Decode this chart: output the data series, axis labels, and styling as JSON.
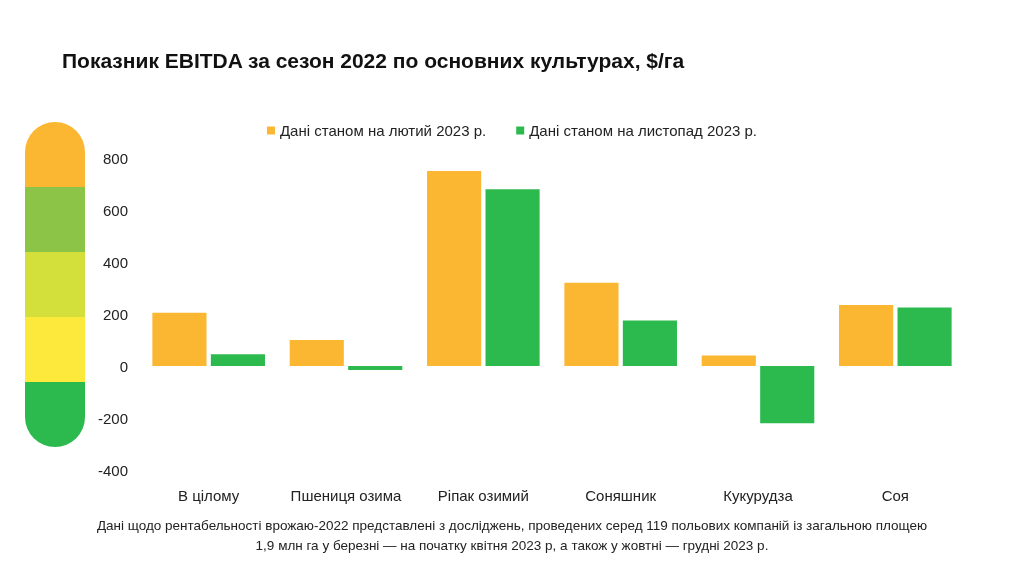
{
  "chart_data": {
    "type": "bar",
    "title": "Показник EBITDA за сезон 2022 по основних культурах, $/га",
    "categories": [
      "В цілому",
      "Пшениця озима",
      "Ріпак озимий",
      "Соняшник",
      "Кукурудза",
      "Соя"
    ],
    "series": [
      {
        "name": "Дані станом на лютий 2023 р.",
        "color": "#fbb731",
        "values": [
          205,
          100,
          750,
          320,
          40,
          235
        ]
      },
      {
        "name": "Дані станом на листопад 2023 р.",
        "color": "#2cba4f",
        "values": [
          45,
          -15,
          680,
          175,
          -220,
          225
        ]
      }
    ],
    "ylim": [
      -400,
      800
    ],
    "yticks": [
      -400,
      -200,
      0,
      200,
      400,
      600,
      800
    ],
    "grid": false,
    "legend": "top",
    "annotations": [
      "Дані щодо рентабельності врожаю-2022 представлені з досліджень, проведених серед 119 польових компаній із загальною площею 1,9 млн га у березні — на початку квітня 2023 р, а також у жовтні — грудні 2023 р."
    ]
  }
}
